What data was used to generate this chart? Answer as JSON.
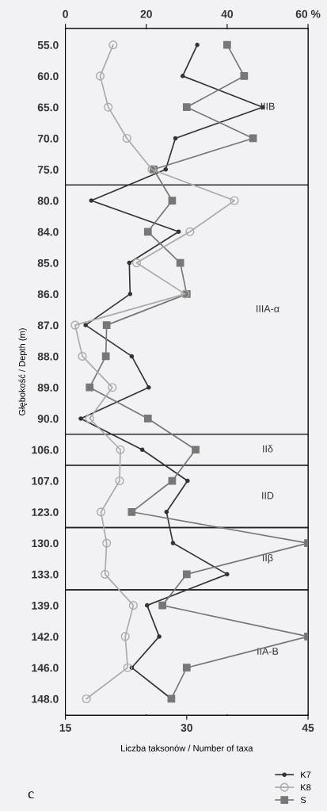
{
  "chart_data": {
    "type": "line",
    "xlabel": "Liczba taksonów / Number of taxa",
    "ylabel": "Głębokość / Depth (m)",
    "orientation": "horizontal",
    "categories": [
      "55.0",
      "60.0",
      "65.0",
      "70.0",
      "75.0",
      "80.0",
      "84.0",
      "85.0",
      "86.0",
      "87.0",
      "88.0",
      "89.0",
      "90.0",
      "106.0",
      "107.0",
      "123.0",
      "130.0",
      "133.0",
      "139.0",
      "142.0",
      "146.0",
      "148.0"
    ],
    "xlim": [
      15,
      45
    ],
    "xticks": [
      15,
      30,
      45
    ],
    "x2lim": [
      0,
      60
    ],
    "x2ticks": [
      0,
      20,
      40,
      {
        "value": 60,
        "label": "60 %"
      }
    ],
    "grid": "x",
    "legend": "bottom right",
    "series": [
      {
        "name": "K7",
        "color": "#333333",
        "marker": "circle",
        "values": [
          31.3,
          29.5,
          39.4,
          28.6,
          27.4,
          18.2,
          29.0,
          22.9,
          23.0,
          17.5,
          23.2,
          25.3,
          16.9,
          24.5,
          30.1,
          27.5,
          28.3,
          35.0,
          25.1,
          26.6,
          23.2,
          28.1
        ]
      },
      {
        "name": "K8",
        "color": "#aaaaaa",
        "marker": "circle",
        "values": [
          20.9,
          19.3,
          20.3,
          22.6,
          25.7,
          35.9,
          30.4,
          23.8,
          29.8,
          16.2,
          17.1,
          20.8,
          18.0,
          21.8,
          21.7,
          19.4,
          20.1,
          19.9,
          23.4,
          22.4,
          22.7,
          17.6
        ]
      },
      {
        "name": "S",
        "color": "#777777",
        "marker": "square",
        "values": [
          35.0,
          37.1,
          30.0,
          38.2,
          25.9,
          28.2,
          25.2,
          29.2,
          30.0,
          20.1,
          20.0,
          18.0,
          25.2,
          31.1,
          28.2,
          23.2,
          45.0,
          30.0,
          27.0,
          45.0,
          30.0,
          28.1
        ]
      }
    ],
    "bands": [
      {
        "axis": "y",
        "from": "55.0",
        "to": "75.0",
        "label": "IIIB",
        "color": "#f2f2f4"
      },
      {
        "axis": "y",
        "from": "80.0",
        "to": "90.0",
        "label": "IIIA-α",
        "color": "#f2f2f4"
      },
      {
        "axis": "y",
        "from": "106.0",
        "to": "106.0",
        "label": "IIδ",
        "color": "#f2f2f4"
      },
      {
        "axis": "y",
        "from": "107.0",
        "to": "123.0",
        "label": "IID",
        "color": "#f2f2f4"
      },
      {
        "axis": "y",
        "from": "130.0",
        "to": "133.0",
        "label": "IIβ",
        "color": "#f2f2f4"
      },
      {
        "axis": "y",
        "from": "139.0",
        "to": "148.0",
        "label": "IIA-B",
        "color": "#f2f2f4"
      }
    ],
    "annotations": [
      "c"
    ]
  }
}
